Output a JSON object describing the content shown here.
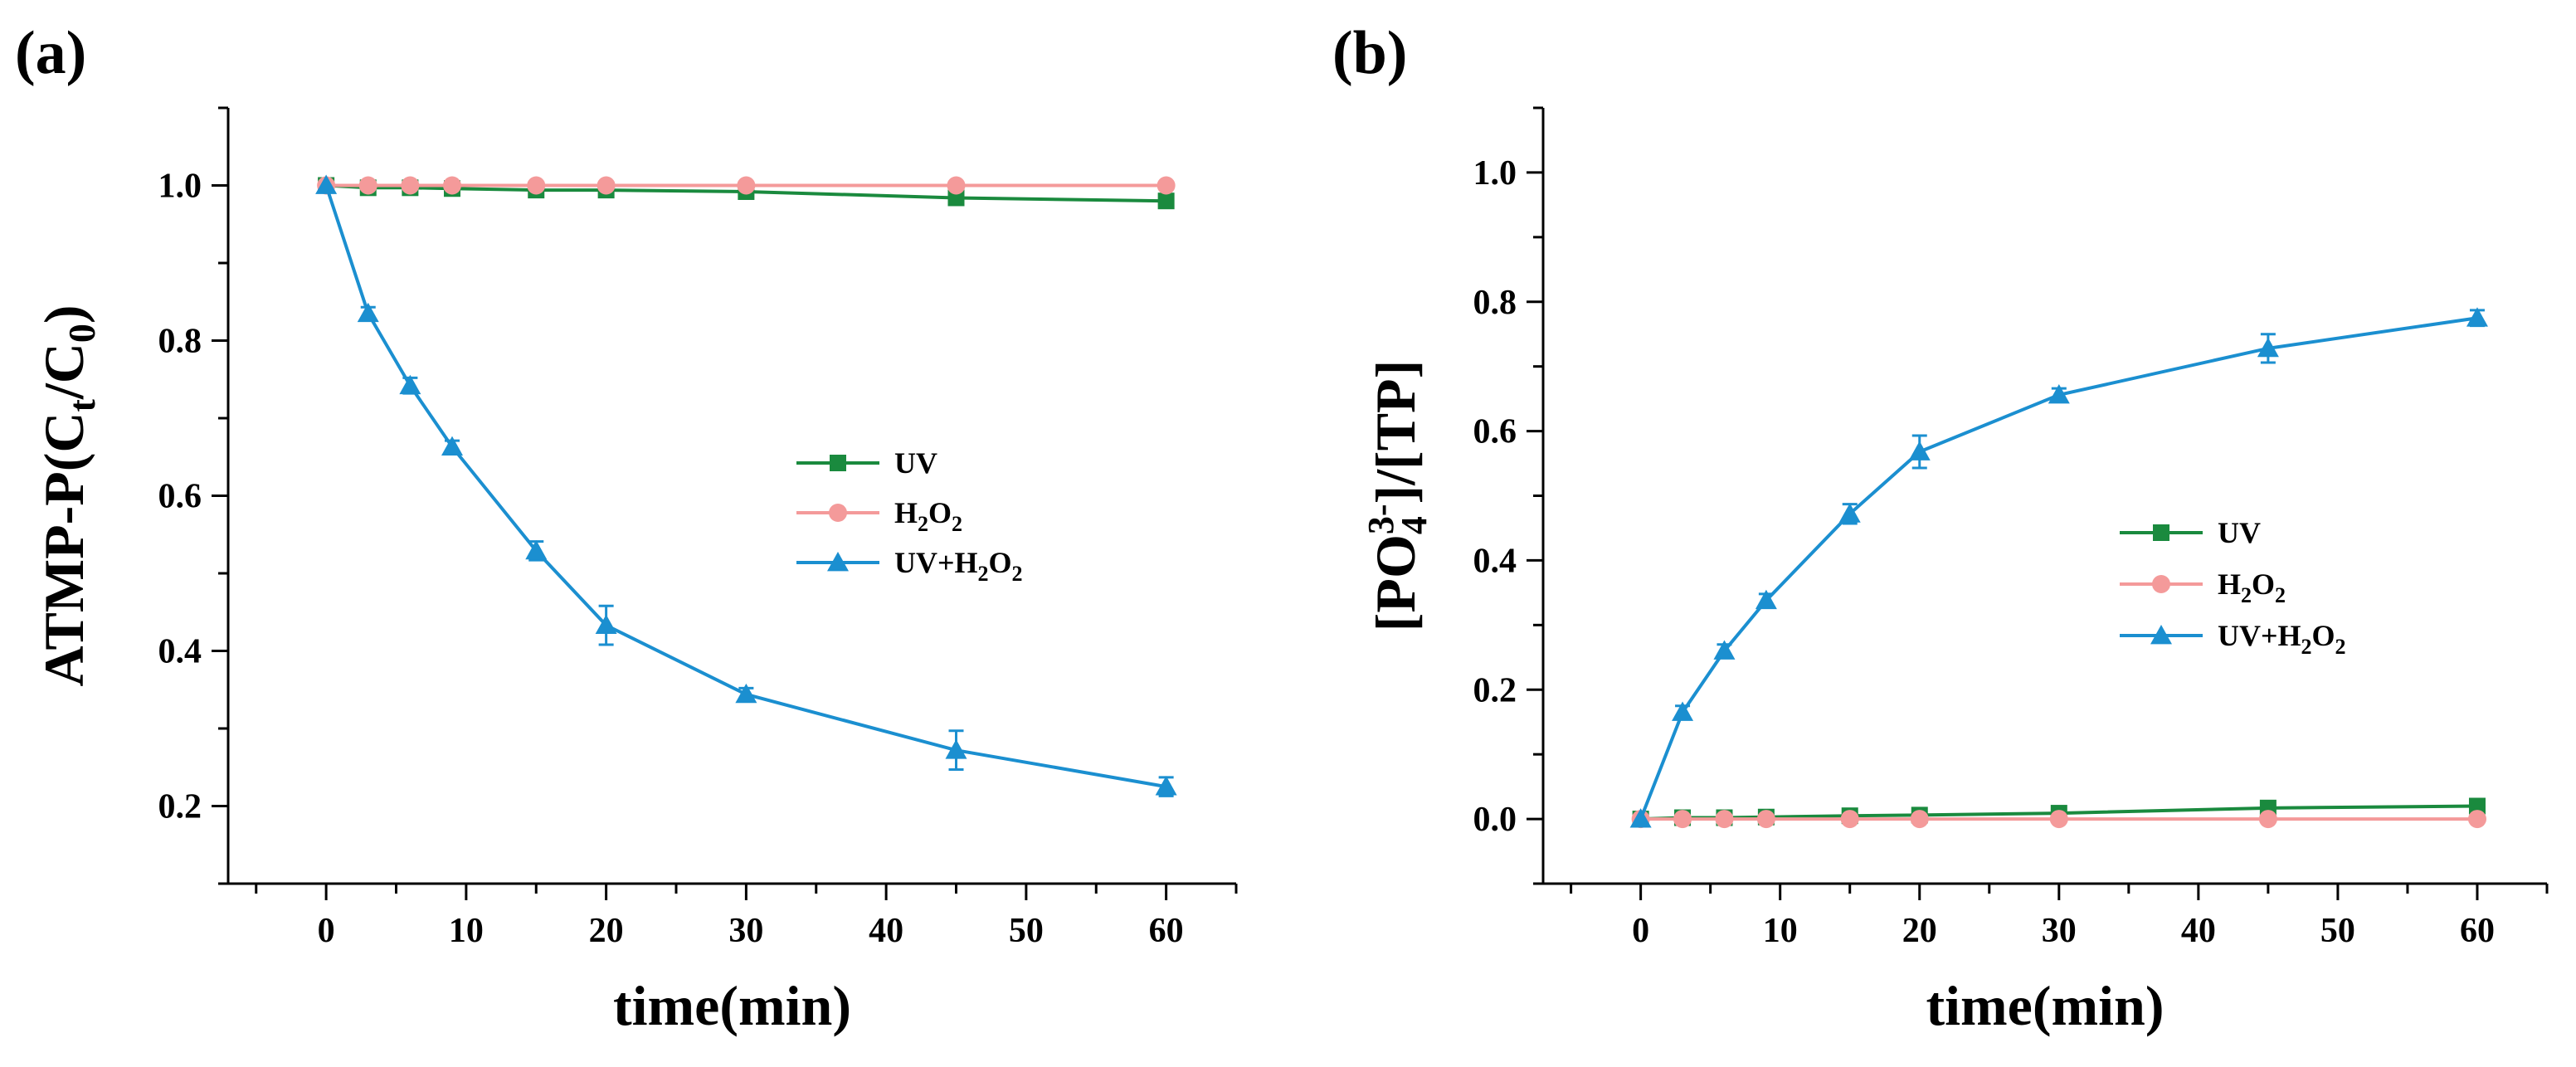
{
  "panels": [
    {
      "label": "(a)",
      "xlabel": "time(min)",
      "ylabel": [
        "ATMP-P(C",
        "t",
        "/C",
        "0",
        ")"
      ],
      "ylabel_text": "ATMP-P(Ct/C0)",
      "chart_data": {
        "type": "line",
        "xlim": [
          -7,
          65
        ],
        "ylim": [
          0.1,
          1.1
        ],
        "xticks": [
          0,
          10,
          20,
          30,
          40,
          50,
          60
        ],
        "yticks": [
          0.2,
          0.4,
          0.6,
          0.8,
          1.0
        ],
        "ytick_decimals": 1,
        "x": [
          0,
          3,
          6,
          9,
          15,
          20,
          30,
          45,
          60
        ],
        "series": [
          {
            "name": "UV",
            "legend": [
              "UV"
            ],
            "color": "#1a8a3e",
            "marker": "square",
            "values": [
              1.0,
              0.997,
              0.997,
              0.996,
              0.994,
              0.994,
              0.992,
              0.984,
              0.98
            ],
            "errors": [
              0,
              0,
              0,
              0,
              0,
              0,
              0,
              0,
              0
            ]
          },
          {
            "name": "H2O2",
            "legend": [
              "H",
              "2",
              "O",
              "2"
            ],
            "color": "#f49a9a",
            "marker": "circle",
            "values": [
              1.0,
              1.0,
              1.0,
              1.0,
              1.0,
              1.0,
              1.0,
              1.0,
              1.0
            ],
            "errors": [
              0,
              0,
              0,
              0,
              0,
              0,
              0,
              0,
              0
            ]
          },
          {
            "name": "UV+H2O2",
            "legend": [
              "UV+H",
              "2",
              "O",
              "2"
            ],
            "color": "#1b8fd0",
            "marker": "triangle",
            "values": [
              1.0,
              0.835,
              0.742,
              0.663,
              0.529,
              0.433,
              0.344,
              0.272,
              0.225
            ],
            "errors": [
              0,
              0.008,
              0.01,
              0.008,
              0.012,
              0.025,
              0.008,
              0.025,
              0.012
            ]
          }
        ],
        "legend_position": "center-right"
      }
    },
    {
      "label": "(b)",
      "xlabel": "time(min)",
      "ylabel": [
        "[PO",
        "4",
        "3-",
        "]/[TP]"
      ],
      "ylabel_text": "[PO43-]/[TP]",
      "chart_data": {
        "type": "line",
        "xlim": [
          -7,
          65
        ],
        "ylim": [
          -0.1,
          1.1
        ],
        "xticks": [
          0,
          10,
          20,
          30,
          40,
          50,
          60
        ],
        "yticks": [
          0.0,
          0.2,
          0.4,
          0.6,
          0.8,
          1.0
        ],
        "ytick_decimals": 1,
        "x": [
          0,
          3,
          6,
          9,
          15,
          20,
          30,
          45,
          60
        ],
        "series": [
          {
            "name": "UV",
            "legend": [
              "UV"
            ],
            "color": "#1a8a3e",
            "marker": "square",
            "values": [
              0.0,
              0.002,
              0.002,
              0.003,
              0.005,
              0.006,
              0.009,
              0.017,
              0.02
            ],
            "errors": [
              0,
              0,
              0,
              0,
              0,
              0,
              0,
              0,
              0
            ]
          },
          {
            "name": "H2O2",
            "legend": [
              "H",
              "2",
              "O",
              "2"
            ],
            "color": "#f49a9a",
            "marker": "circle",
            "values": [
              0.0,
              0.0,
              0.0,
              0.0,
              0.0,
              0.0,
              0.0,
              0.0,
              0.0
            ],
            "errors": [
              0,
              0,
              0,
              0,
              0,
              0,
              0,
              0,
              0
            ]
          },
          {
            "name": "UV+H2O2",
            "legend": [
              "UV+H",
              "2",
              "O",
              "2"
            ],
            "color": "#1b8fd0",
            "marker": "triangle",
            "values": [
              0.0,
              0.165,
              0.26,
              0.338,
              0.472,
              0.568,
              0.656,
              0.728,
              0.775
            ],
            "errors": [
              0,
              0.01,
              0.01,
              0.01,
              0.015,
              0.025,
              0.01,
              0.022,
              0.012
            ]
          }
        ],
        "legend_position": "center-right"
      }
    }
  ]
}
